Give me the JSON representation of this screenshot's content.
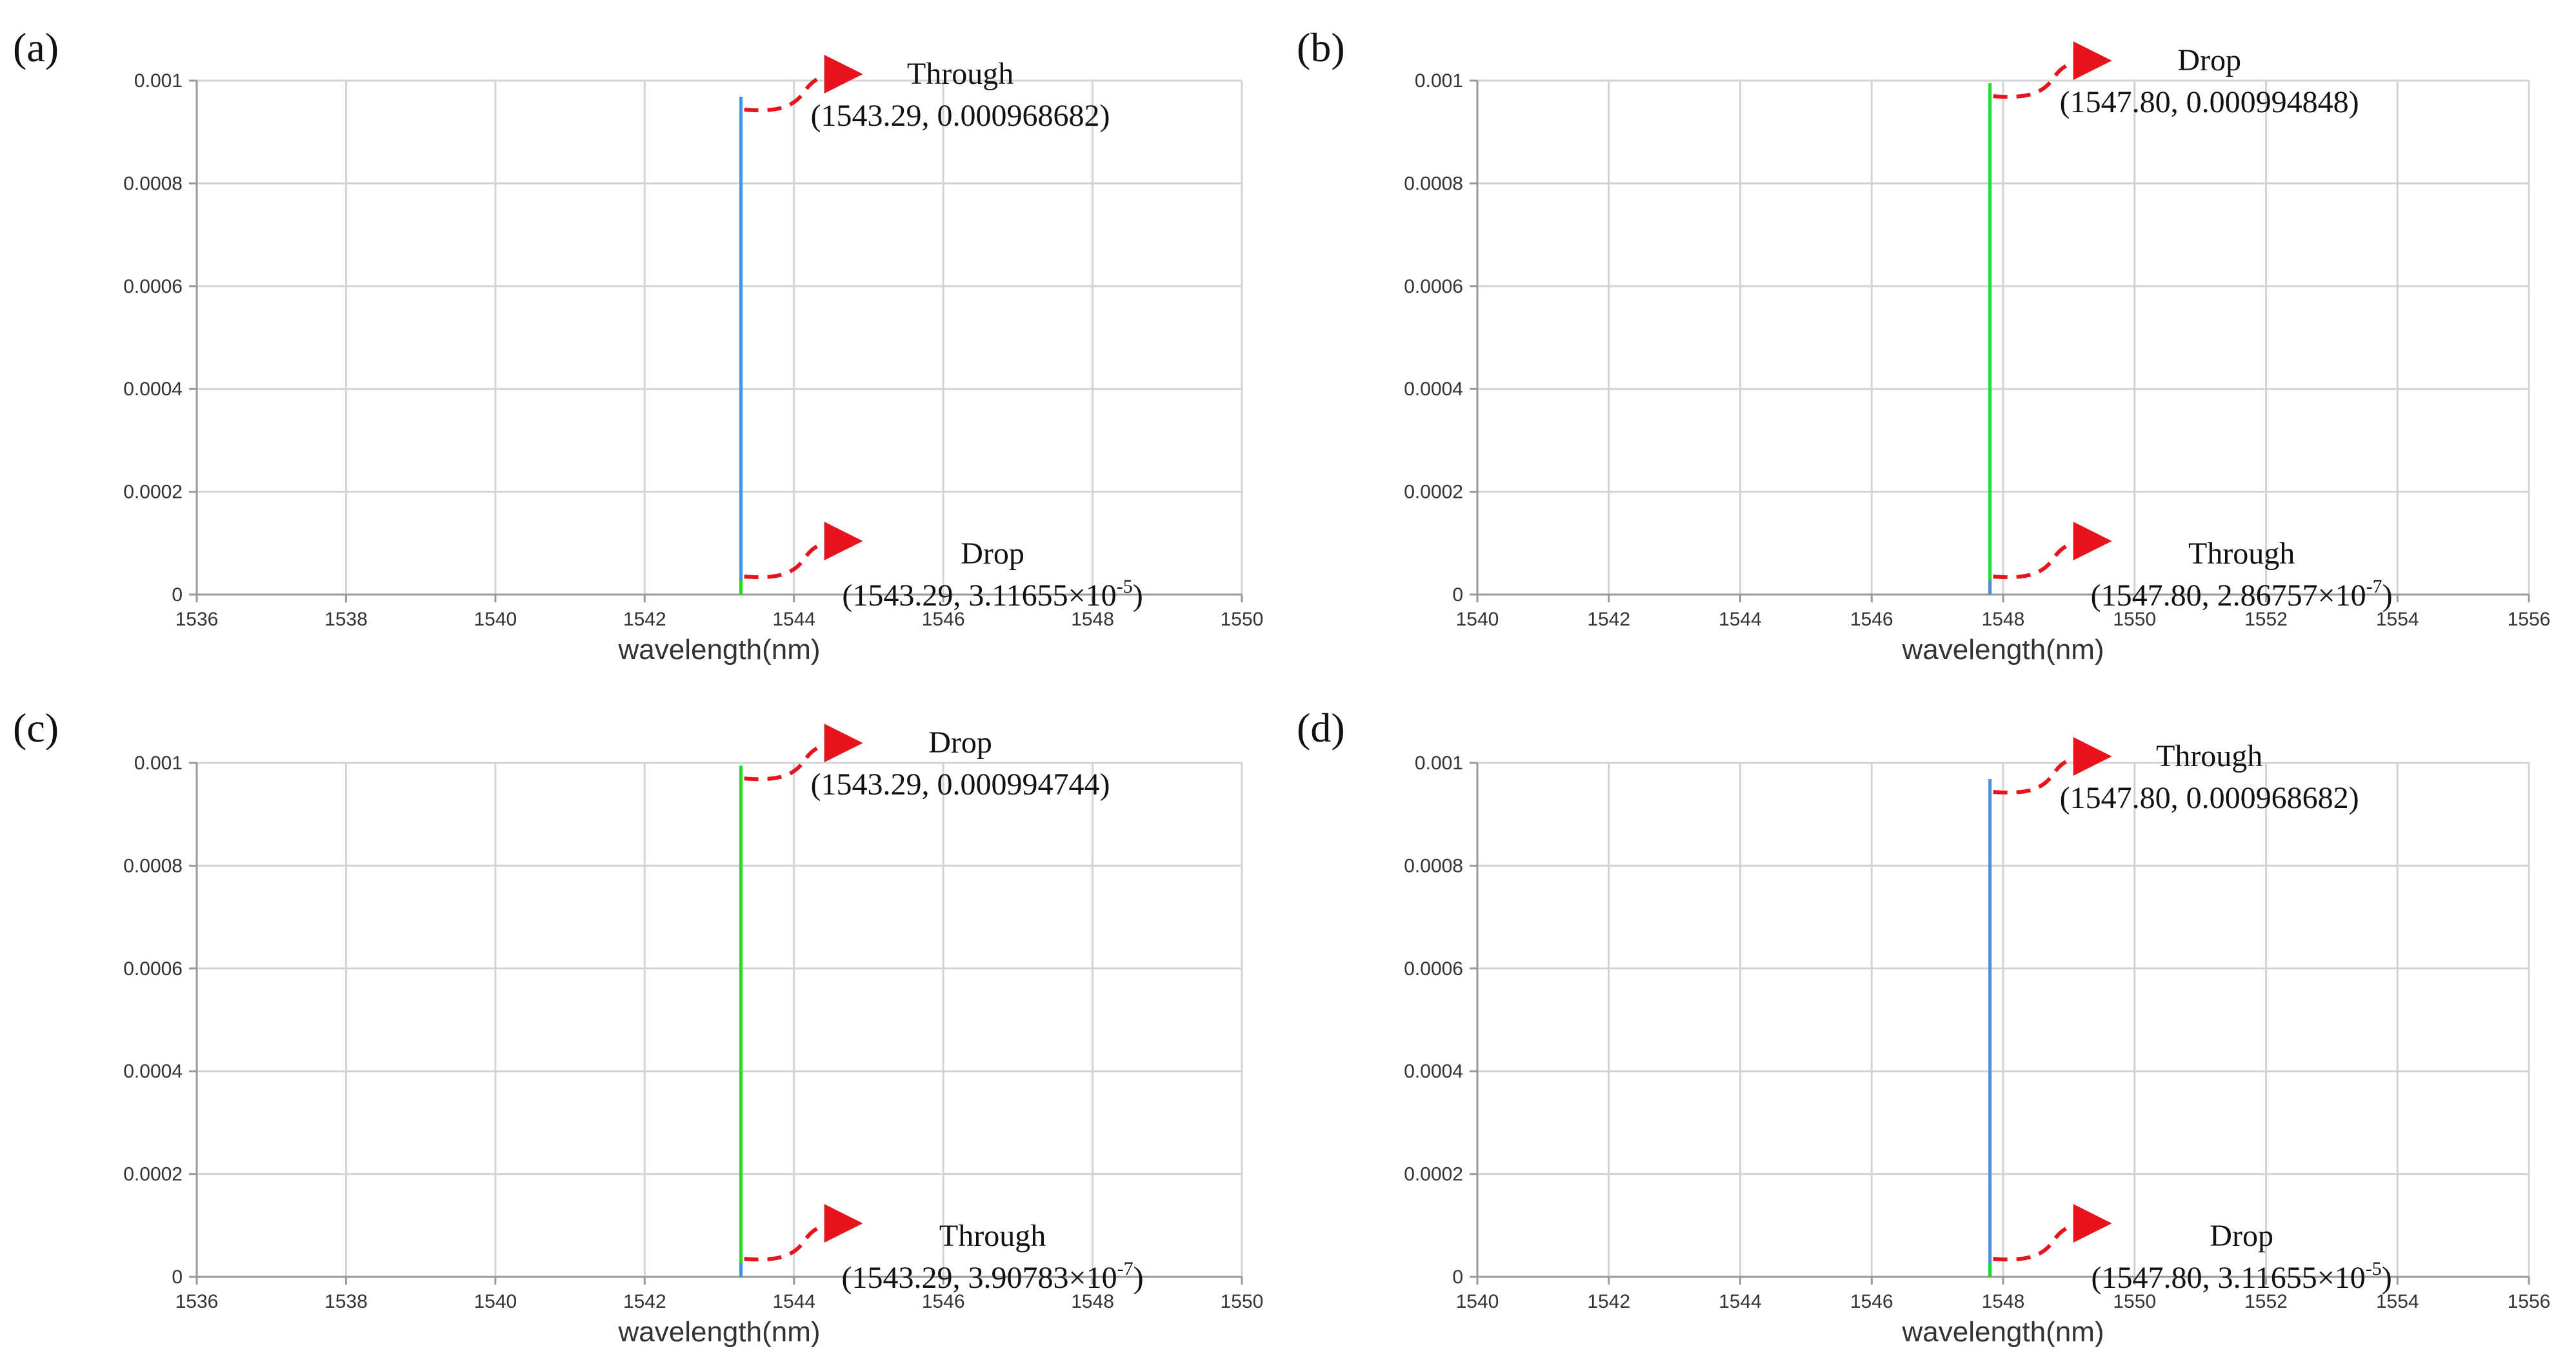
{
  "chart_data": [
    {
      "panel": "(a)",
      "type": "line",
      "xlabel": "wavelength(nm)",
      "xlim": [
        1536,
        1550
      ],
      "ylim": [
        0,
        0.001
      ],
      "xticks": [
        "1536",
        "1538",
        "1540",
        "1542",
        "1544",
        "1546",
        "1548",
        "1550"
      ],
      "yticks": [
        "0",
        "0.0002",
        "0.0004",
        "0.0006",
        "0.0008",
        "0.001"
      ],
      "grid": true,
      "series": [
        {
          "name": "Through",
          "color": "#4a90e2",
          "x": 1543.29,
          "peak": 0.000968682
        },
        {
          "name": "Drop",
          "color": "#22dd22",
          "x": 1543.29,
          "peak": 3.11655e-05
        }
      ],
      "annotations": [
        {
          "label": "Through",
          "coord": "(1543.29, 0.000968682)",
          "exp": "",
          "pos": "top"
        },
        {
          "label": "Drop",
          "coord": "(1543.29, 3.11655×10",
          "exp": "-5",
          "pos": "bottom",
          "close": ")"
        }
      ]
    },
    {
      "panel": "(b)",
      "type": "line",
      "xlabel": "wavelength(nm)",
      "xlim": [
        1540,
        1556
      ],
      "ylim": [
        0,
        0.001
      ],
      "xticks": [
        "1540",
        "1542",
        "1544",
        "1546",
        "1548",
        "1550",
        "1552",
        "1554",
        "1556"
      ],
      "yticks": [
        "0",
        "0.0002",
        "0.0004",
        "0.0006",
        "0.0008",
        "0.001"
      ],
      "grid": true,
      "series": [
        {
          "name": "Drop",
          "color": "#22dd22",
          "x": 1547.8,
          "peak": 0.000994848
        },
        {
          "name": "Through",
          "color": "#4a90e2",
          "x": 1547.8,
          "peak": 2.86757e-07
        }
      ],
      "annotations": [
        {
          "label": "Drop",
          "coord": "(1547.80, 0.000994848)",
          "exp": "",
          "pos": "top"
        },
        {
          "label": "Through",
          "coord": "(1547.80, 2.86757×10",
          "exp": "-7",
          "pos": "bottom",
          "close": ")"
        }
      ]
    },
    {
      "panel": "(c)",
      "type": "line",
      "xlabel": "wavelength(nm)",
      "xlim": [
        1536,
        1550
      ],
      "ylim": [
        0,
        0.001
      ],
      "xticks": [
        "1536",
        "1538",
        "1540",
        "1542",
        "1544",
        "1546",
        "1548",
        "1550"
      ],
      "yticks": [
        "0",
        "0.0002",
        "0.0004",
        "0.0006",
        "0.0008",
        "0.001"
      ],
      "grid": true,
      "series": [
        {
          "name": "Drop",
          "color": "#22dd22",
          "x": 1543.29,
          "peak": 0.000994744
        },
        {
          "name": "Through",
          "color": "#4a90e2",
          "x": 1543.29,
          "peak": 3.90783e-07
        }
      ],
      "annotations": [
        {
          "label": "Drop",
          "coord": "(1543.29, 0.000994744)",
          "exp": "",
          "pos": "top"
        },
        {
          "label": "Through",
          "coord": "(1543.29, 3.90783×10",
          "exp": "-7",
          "pos": "bottom",
          "close": ")"
        }
      ]
    },
    {
      "panel": "(d)",
      "type": "line",
      "xlabel": "wavelength(nm)",
      "xlim": [
        1540,
        1556
      ],
      "ylim": [
        0,
        0.001
      ],
      "xticks": [
        "1540",
        "1542",
        "1544",
        "1546",
        "1548",
        "1550",
        "1552",
        "1554",
        "1556"
      ],
      "yticks": [
        "0",
        "0.0002",
        "0.0004",
        "0.0006",
        "0.0008",
        "0.001"
      ],
      "grid": true,
      "series": [
        {
          "name": "Through",
          "color": "#4a90e2",
          "x": 1547.8,
          "peak": 0.000968682
        },
        {
          "name": "Drop",
          "color": "#22dd22",
          "x": 1547.8,
          "peak": 3.11655e-05
        }
      ],
      "annotations": [
        {
          "label": "Through",
          "coord": "(1547.80, 0.000968682)",
          "exp": "",
          "pos": "top"
        },
        {
          "label": "Drop",
          "coord": "(1547.80, 3.11655×10",
          "exp": "-5",
          "pos": "bottom",
          "close": ")"
        }
      ]
    }
  ],
  "colors": {
    "grid": "#d4d4d4",
    "axis": "#999999",
    "arrow": "#e8141c"
  }
}
